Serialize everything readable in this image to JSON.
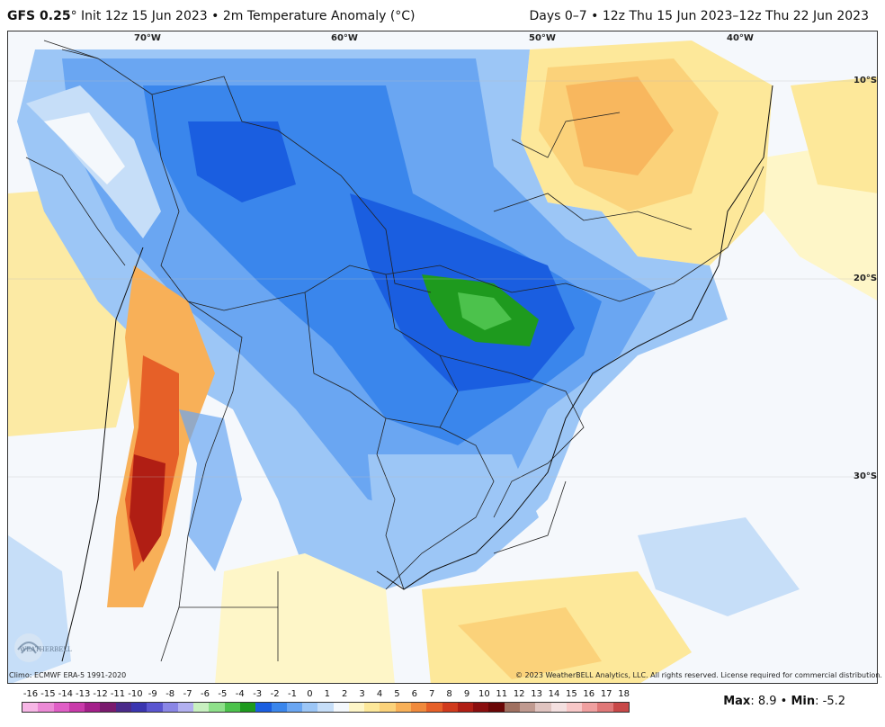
{
  "header": {
    "model": "GFS 0.25",
    "degree": "°",
    "title_rest": " Init 12z 15 Jun 2023 • 2m Temperature Anomaly (°C)",
    "period": "Days 0–7 • 12z Thu 15 Jun 2023–12z Thu 22 Jun 2023"
  },
  "map": {
    "longitude_labels": [
      "70°W",
      "60°W",
      "50°W",
      "40°W"
    ],
    "latitude_labels": [
      "10°S",
      "20°S",
      "30°S"
    ]
  },
  "footer": {
    "climo": "Climo: ECMWF ERA-5 1991-2020",
    "copyright": "© 2023 WeatherBELL Analytics, LLC. All rights reserved. License required for commercial distribution.",
    "logo_text": "WEATHERBELL"
  },
  "scale": {
    "ticks": [
      "-16",
      "-15",
      "-14",
      "-13",
      "-12",
      "-11",
      "-10",
      "-9",
      "-8",
      "-7",
      "-6",
      "-5",
      "-4",
      "-3",
      "-2",
      "-1",
      "0",
      "1",
      "2",
      "3",
      "4",
      "5",
      "6",
      "7",
      "8",
      "9",
      "10",
      "11",
      "12",
      "13",
      "14",
      "15",
      "16",
      "17",
      "18"
    ],
    "colors": [
      "#f7b6e6",
      "#ec8ad6",
      "#e05ec6",
      "#c93aaa",
      "#a41f8a",
      "#7a1a6e",
      "#4a2a8a",
      "#3a35b0",
      "#5a55d0",
      "#8a86e6",
      "#b2b0f0",
      "#c8f0c0",
      "#8ee08a",
      "#4cc24c",
      "#1e9a1e",
      "#1a5ee0",
      "#3a86ec",
      "#6aa6f2",
      "#9cc6f6",
      "#c6def8",
      "#f4f8fc",
      "#fef6c8",
      "#fde89a",
      "#fbd27a",
      "#f8b058",
      "#f08a3c",
      "#e66028",
      "#d03a1c",
      "#b01e14",
      "#8a0e0e",
      "#6a0606",
      "#a07060",
      "#c09a90",
      "#e0c4c0",
      "#f4e0e0",
      "#f8c8c8",
      "#f0a0a0",
      "#e07878",
      "#c84848"
    ]
  },
  "stats": {
    "max_label": "Max",
    "max_value": ": 8.9",
    "sep": " • ",
    "min_label": "Min",
    "min_value": ": -5.2"
  }
}
